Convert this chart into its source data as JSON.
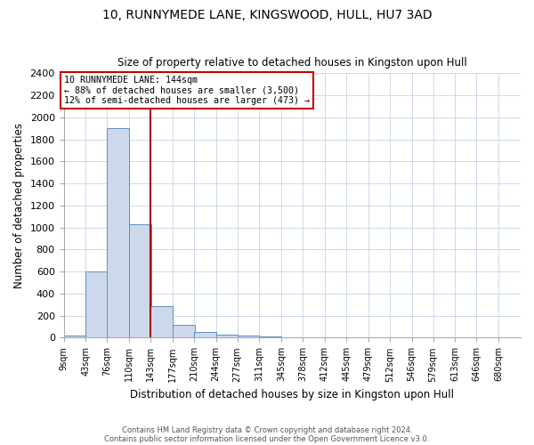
{
  "title1": "10, RUNNYMEDE LANE, KINGSWOOD, HULL, HU7 3AD",
  "title2": "Size of property relative to detached houses in Kingston upon Hull",
  "xlabel": "Distribution of detached houses by size in Kingston upon Hull",
  "ylabel": "Number of detached properties",
  "footer1": "Contains HM Land Registry data © Crown copyright and database right 2024.",
  "footer2": "Contains public sector information licensed under the Open Government Licence v3.0.",
  "annotation_line1": "10 RUNNYMEDE LANE: 144sqm",
  "annotation_line2": "← 88% of detached houses are smaller (3,500)",
  "annotation_line3": "12% of semi-detached houses are larger (473) →",
  "bar_color": "#cdd9ea",
  "bar_edge_color": "#5b8ec4",
  "marker_line_color": "#aa0000",
  "annotation_box_edge_color": "#cc0000",
  "bins": [
    9,
    43,
    76,
    110,
    143,
    177,
    210,
    244,
    277,
    311,
    345,
    378,
    412,
    445,
    479,
    512,
    546,
    579,
    613,
    646,
    680
  ],
  "bin_labels": [
    "9sqm",
    "43sqm",
    "76sqm",
    "110sqm",
    "143sqm",
    "177sqm",
    "210sqm",
    "244sqm",
    "277sqm",
    "311sqm",
    "345sqm",
    "378sqm",
    "412sqm",
    "445sqm",
    "479sqm",
    "512sqm",
    "546sqm",
    "579sqm",
    "613sqm",
    "646sqm",
    "680sqm"
  ],
  "values": [
    20,
    600,
    1900,
    1030,
    285,
    120,
    50,
    25,
    20,
    10,
    5,
    0,
    0,
    0,
    0,
    0,
    0,
    0,
    0,
    0,
    0
  ],
  "ylim": [
    0,
    2400
  ],
  "yticks": [
    0,
    200,
    400,
    600,
    800,
    1000,
    1200,
    1400,
    1600,
    1800,
    2000,
    2200,
    2400
  ],
  "background_color": "#ffffff",
  "grid_color": "#c5d3e8"
}
